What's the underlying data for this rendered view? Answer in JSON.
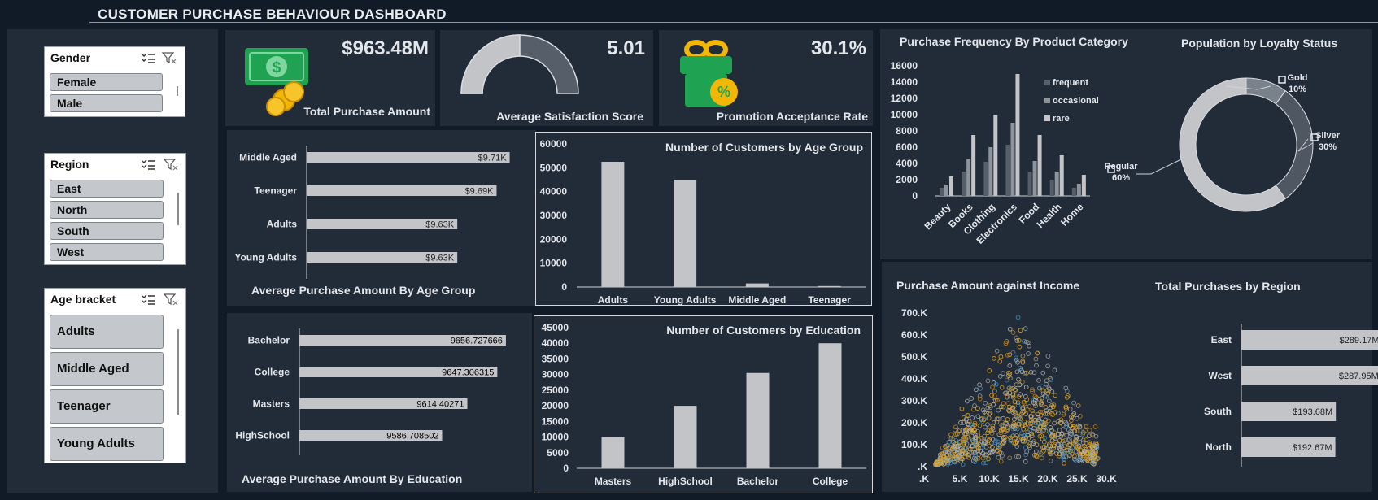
{
  "dashboard": {
    "title": "CUSTOMER PURCHASE BEHAVIOUR DASHBOARD"
  },
  "colors": {
    "background": "#111b27",
    "panel": "#222b38",
    "bar": "#c3c4c8",
    "accent_green": "#1fa352",
    "gold": "#f2b705"
  },
  "slicers": {
    "gender": {
      "title": "Gender",
      "items": [
        "Female",
        "Male"
      ]
    },
    "region": {
      "title": "Region",
      "items": [
        "East",
        "North",
        "South",
        "West"
      ]
    },
    "age": {
      "title": "Age bracket",
      "items": [
        "Adults",
        "Middle Aged",
        "Teenager",
        "Young Adults"
      ]
    }
  },
  "icons": {
    "multiselect": "multi-select-icon",
    "clear_filter": "clear-filter-icon",
    "money": "money-icon",
    "gift": "gift-percent-icon"
  },
  "kpis": {
    "total_purchase": {
      "value": "$963.48M",
      "label": "Total Purchase Amount"
    },
    "satisfaction": {
      "value": "5.01",
      "label": "Average Satisfaction Score",
      "fraction": 0.5
    },
    "promotion": {
      "value": "30.1%",
      "label": "Promotion Acceptance Rate"
    }
  },
  "chart_data": [
    {
      "id": "avg_age",
      "type": "bar",
      "orientation": "horizontal",
      "title": "Average Purchase Amount By Age Group",
      "categories": [
        "Middle Aged",
        "Teenager",
        "Adults",
        "Young Adults"
      ],
      "values": [
        9710,
        9690,
        9630,
        9630
      ],
      "data_labels": [
        "$9.71K",
        "$9.69K",
        "$9.63K",
        "$9.63K"
      ]
    },
    {
      "id": "count_age",
      "type": "bar",
      "title": "Number of Customers by Age Group",
      "categories": [
        "Adults",
        "Young Adults",
        "Middle Aged",
        "Teenager"
      ],
      "values": [
        52500,
        45000,
        1500,
        400
      ],
      "ylim": [
        0,
        60000
      ],
      "yticks": [
        "0",
        "10000",
        "20000",
        "30000",
        "40000",
        "50000",
        "60000"
      ]
    },
    {
      "id": "avg_edu",
      "type": "bar",
      "orientation": "horizontal",
      "title": "Average Purchase Amount By Education",
      "categories": [
        "Bachelor",
        "College",
        "Masters",
        "HighSchool"
      ],
      "values": [
        9656.727666,
        9647.306315,
        9614.40271,
        9586.708502
      ],
      "data_labels": [
        "9656.727666",
        "9647.306315",
        "9614.40271",
        "9586.708502"
      ]
    },
    {
      "id": "count_edu",
      "type": "bar",
      "title": "Number of Customers by Education",
      "categories": [
        "Masters",
        "HighSchool",
        "Bachelor",
        "College"
      ],
      "values": [
        10000,
        20000,
        30500,
        40000
      ],
      "ylim": [
        0,
        45000
      ],
      "yticks": [
        "0",
        "5000",
        "10000",
        "15000",
        "20000",
        "25000",
        "30000",
        "35000",
        "40000",
        "45000"
      ]
    },
    {
      "id": "freq_cat",
      "type": "bar",
      "title": "Purchase Frequency By Product Category",
      "categories": [
        "Beauty",
        "Books",
        "Clothing",
        "Electronics",
        "Food",
        "Health",
        "Home"
      ],
      "series": [
        {
          "name": "frequent",
          "values": [
            1000,
            3000,
            4200,
            6300,
            3000,
            2000,
            1000
          ]
        },
        {
          "name": "occasional",
          "values": [
            1400,
            4500,
            6000,
            9000,
            4300,
            3000,
            1500
          ]
        },
        {
          "name": "rare",
          "values": [
            2400,
            7500,
            10000,
            15000,
            7500,
            5000,
            2600
          ]
        }
      ],
      "series_colors": [
        "#555e69",
        "#8d949c",
        "#c3c4c8"
      ],
      "ylim": [
        0,
        16000
      ],
      "yticks": [
        "0",
        "2000",
        "4000",
        "6000",
        "8000",
        "10000",
        "12000",
        "14000",
        "16000"
      ]
    },
    {
      "id": "loyalty",
      "type": "pie",
      "title": "Population by Loyalty Status",
      "labels": [
        "Gold",
        "Silver",
        "Regular"
      ],
      "values": [
        10,
        30,
        60
      ],
      "percent_labels": [
        "10%",
        "30%",
        "60%"
      ],
      "colors": [
        "#79818b",
        "#4f5862",
        "#c3c4c8"
      ]
    },
    {
      "id": "scatter_income",
      "type": "scatter",
      "title": "Purchase Amount against Income",
      "xticks": [
        ".K",
        "5.K",
        "10.K",
        "15.K",
        "20.K",
        "25.K",
        "30.K"
      ],
      "yticks": [
        ".K",
        "100.K",
        "200.K",
        "300.K",
        "400.K",
        "500.K",
        "600.K",
        "700.K"
      ],
      "xlim": [
        0,
        30000
      ],
      "ylim": [
        0,
        700000
      ]
    },
    {
      "id": "region",
      "type": "bar",
      "orientation": "horizontal",
      "title": "Total Purchases by Region",
      "categories": [
        "East",
        "West",
        "South",
        "North"
      ],
      "values": [
        289.17,
        287.95,
        193.68,
        192.67
      ],
      "data_labels": [
        "$289.17M",
        "$287.95M",
        "$193.68M",
        "$192.67M"
      ]
    }
  ]
}
